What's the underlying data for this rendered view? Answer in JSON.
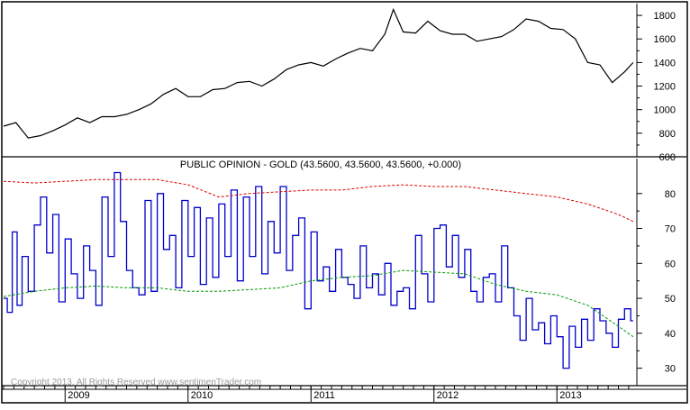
{
  "copyright": "Copyright 2013, All Rights Reserved   www.sentimenTrader.com",
  "colors": {
    "price": "#000000",
    "opinion": "#0000cc",
    "upper_band": "#dd0000",
    "lower_band": "#009900",
    "frame": "#000000"
  },
  "chart_data": [
    {
      "type": "line",
      "title": "",
      "xlabel": "",
      "ylabel": "",
      "ylim": [
        600,
        1900
      ],
      "y_ticks": [
        600,
        800,
        1000,
        1200,
        1400,
        1600,
        1800
      ],
      "y_tick_labels": [
        "600",
        "800",
        "1000",
        "1200",
        "1400",
        "1600",
        "1800"
      ],
      "grid": false,
      "x_range": [
        2008.5,
        2013.65
      ],
      "x_tick_labels": [
        "2009",
        "2010",
        "2011",
        "2012",
        "2013"
      ],
      "x_tick_positions": [
        2009,
        2010,
        2011,
        2012,
        2013
      ],
      "series": [
        {
          "color": "#000000",
          "x": [
            2008.5,
            2008.6,
            2008.7,
            2008.8,
            2008.9,
            2009.0,
            2009.1,
            2009.2,
            2009.3,
            2009.4,
            2009.5,
            2009.6,
            2009.7,
            2009.8,
            2009.9,
            2010.0,
            2010.1,
            2010.2,
            2010.3,
            2010.4,
            2010.5,
            2010.6,
            2010.7,
            2010.8,
            2010.9,
            2011.0,
            2011.1,
            2011.2,
            2011.3,
            2011.4,
            2011.5,
            2011.6,
            2011.67,
            2011.75,
            2011.85,
            2011.95,
            2012.05,
            2012.15,
            2012.25,
            2012.35,
            2012.45,
            2012.55,
            2012.65,
            2012.75,
            2012.85,
            2012.95,
            2013.05,
            2013.15,
            2013.25,
            2013.35,
            2013.45,
            2013.55,
            2013.62
          ],
          "values": [
            860,
            890,
            760,
            780,
            820,
            870,
            930,
            890,
            940,
            940,
            960,
            1000,
            1050,
            1130,
            1180,
            1110,
            1110,
            1170,
            1180,
            1230,
            1240,
            1200,
            1260,
            1340,
            1380,
            1400,
            1370,
            1430,
            1480,
            1520,
            1500,
            1640,
            1850,
            1660,
            1650,
            1750,
            1670,
            1640,
            1640,
            1580,
            1600,
            1620,
            1680,
            1770,
            1750,
            1690,
            1680,
            1600,
            1400,
            1380,
            1230,
            1320,
            1400
          ]
        }
      ]
    },
    {
      "type": "line",
      "title": "PUBLIC OPINION - GOLD (43.5600, 43.5600, 43.5600, +0.000)",
      "xlabel": "",
      "ylabel": "",
      "ylim": [
        25,
        90
      ],
      "y_ticks": [
        30,
        40,
        50,
        60,
        70,
        80
      ],
      "y_tick_labels": [
        "30",
        "40",
        "50",
        "60",
        "70",
        "80"
      ],
      "grid": false,
      "x_range": [
        2008.5,
        2013.65
      ],
      "x_tick_labels": [
        "2009",
        "2010",
        "2011",
        "2012",
        "2013"
      ],
      "x_tick_positions": [
        2009,
        2010,
        2011,
        2012,
        2013
      ],
      "series": [
        {
          "color": "#0000cc",
          "step": true,
          "x": [
            2008.5,
            2008.53,
            2008.57,
            2008.61,
            2008.65,
            2008.7,
            2008.75,
            2008.8,
            2008.85,
            2008.9,
            2008.95,
            2009.0,
            2009.05,
            2009.1,
            2009.15,
            2009.2,
            2009.25,
            2009.3,
            2009.35,
            2009.4,
            2009.45,
            2009.5,
            2009.55,
            2009.6,
            2009.65,
            2009.7,
            2009.75,
            2009.8,
            2009.85,
            2009.9,
            2009.95,
            2010.0,
            2010.05,
            2010.1,
            2010.15,
            2010.2,
            2010.25,
            2010.3,
            2010.35,
            2010.4,
            2010.45,
            2010.5,
            2010.55,
            2010.6,
            2010.65,
            2010.7,
            2010.75,
            2010.8,
            2010.85,
            2010.9,
            2010.95,
            2011.0,
            2011.05,
            2011.1,
            2011.15,
            2011.2,
            2011.25,
            2011.3,
            2011.35,
            2011.4,
            2011.45,
            2011.5,
            2011.55,
            2011.6,
            2011.65,
            2011.7,
            2011.75,
            2011.8,
            2011.85,
            2011.9,
            2011.95,
            2012.0,
            2012.05,
            2012.1,
            2012.15,
            2012.2,
            2012.25,
            2012.3,
            2012.35,
            2012.4,
            2012.45,
            2012.5,
            2012.55,
            2012.6,
            2012.65,
            2012.7,
            2012.75,
            2012.8,
            2012.85,
            2012.9,
            2012.95,
            2013.0,
            2013.05,
            2013.1,
            2013.15,
            2013.2,
            2013.25,
            2013.3,
            2013.35,
            2013.4,
            2013.45,
            2013.5,
            2013.55,
            2013.6,
            2013.62
          ],
          "values": [
            50,
            46,
            69,
            48,
            62,
            52,
            71,
            79,
            63,
            74,
            49,
            67,
            57,
            50,
            65,
            58,
            48,
            79,
            62,
            86,
            72,
            58,
            53,
            51,
            78,
            52,
            80,
            64,
            68,
            53,
            78,
            62,
            76,
            54,
            73,
            56,
            77,
            62,
            81,
            55,
            79,
            62,
            82,
            57,
            72,
            63,
            82,
            58,
            68,
            73,
            47,
            69,
            55,
            59,
            52,
            64,
            56,
            54,
            50,
            65,
            53,
            57,
            51,
            60,
            48,
            52,
            53,
            47,
            68,
            57,
            49,
            70,
            71,
            59,
            68,
            56,
            64,
            52,
            49,
            56,
            57,
            49,
            65,
            53,
            45,
            38,
            50,
            41,
            43,
            37,
            45,
            39,
            30,
            42,
            36,
            44,
            38,
            47,
            43.56,
            40,
            36,
            44,
            47,
            43.56,
            43.56
          ]
        },
        {
          "color": "#dd0000",
          "dashed": true,
          "x": [
            2008.5,
            2008.75,
            2009.0,
            2009.25,
            2009.5,
            2009.75,
            2010.0,
            2010.25,
            2010.5,
            2010.75,
            2011.0,
            2011.25,
            2011.5,
            2011.75,
            2012.0,
            2012.25,
            2012.5,
            2012.75,
            2013.0,
            2013.25,
            2013.5,
            2013.62
          ],
          "values": [
            83.5,
            83,
            83.5,
            84,
            84,
            84,
            82.5,
            79,
            80,
            80.5,
            81,
            81,
            82,
            82.5,
            82,
            82,
            81,
            80,
            79,
            77,
            74,
            72
          ]
        },
        {
          "color": "#009900",
          "dashed": true,
          "x": [
            2008.5,
            2008.75,
            2009.0,
            2009.25,
            2009.5,
            2009.75,
            2010.0,
            2010.25,
            2010.5,
            2010.75,
            2011.0,
            2011.25,
            2011.5,
            2011.75,
            2012.0,
            2012.25,
            2012.5,
            2012.75,
            2013.0,
            2013.25,
            2013.5,
            2013.62
          ],
          "values": [
            50.5,
            52,
            53,
            53.5,
            53,
            53,
            52,
            52,
            52.5,
            53,
            55,
            56,
            56.5,
            58,
            57.5,
            57,
            54,
            52,
            51,
            48,
            42,
            39
          ]
        }
      ]
    }
  ]
}
